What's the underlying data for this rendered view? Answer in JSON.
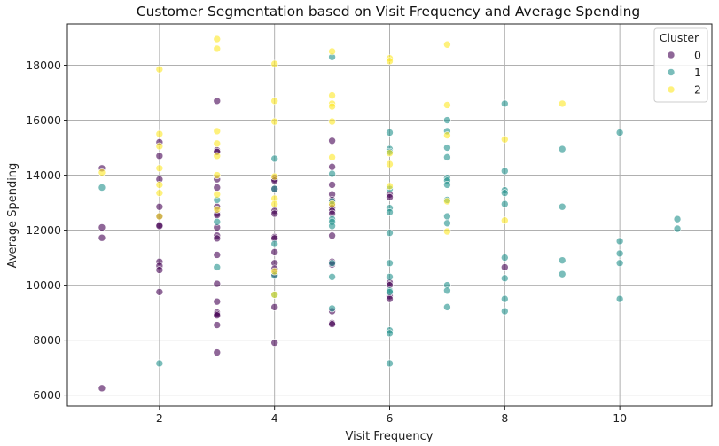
{
  "chart_data": {
    "type": "scatter",
    "title": "Customer Segmentation based on Visit Frequency and Average Spending",
    "xlabel": "Visit Frequency",
    "ylabel": "Average Spending",
    "xlim": [
      0.4,
      11.6
    ],
    "ylim": [
      5600,
      19500
    ],
    "xticks": [
      2,
      4,
      6,
      8,
      10
    ],
    "yticks": [
      6000,
      8000,
      10000,
      12000,
      14000,
      16000,
      18000
    ],
    "grid": true,
    "legend": {
      "title": "Cluster",
      "position": "top-right"
    },
    "series": [
      {
        "name": "0",
        "color": "#440154",
        "points": [
          [
            1,
            14250
          ],
          [
            1,
            12100
          ],
          [
            1,
            11720
          ],
          [
            1,
            6250
          ],
          [
            2,
            15200
          ],
          [
            2,
            14700
          ],
          [
            2,
            13850
          ],
          [
            2,
            12850
          ],
          [
            2,
            12500
          ],
          [
            2,
            12180
          ],
          [
            2,
            12150
          ],
          [
            2,
            10850
          ],
          [
            2,
            10700
          ],
          [
            2,
            10550
          ],
          [
            2,
            9750
          ],
          [
            3,
            16700
          ],
          [
            3,
            14900
          ],
          [
            3,
            14850
          ],
          [
            3,
            13850
          ],
          [
            3,
            13550
          ],
          [
            3,
            12850
          ],
          [
            3,
            12600
          ],
          [
            3,
            12550
          ],
          [
            3,
            12100
          ],
          [
            3,
            11800
          ],
          [
            3,
            11700
          ],
          [
            3,
            11100
          ],
          [
            3,
            10050
          ],
          [
            3,
            9400
          ],
          [
            3,
            9000
          ],
          [
            3,
            8950
          ],
          [
            3,
            8900
          ],
          [
            3,
            8550
          ],
          [
            3,
            7550
          ],
          [
            4,
            13900
          ],
          [
            4,
            13850
          ],
          [
            4,
            13800
          ],
          [
            4,
            13500
          ],
          [
            4,
            12700
          ],
          [
            4,
            12600
          ],
          [
            4,
            11750
          ],
          [
            4,
            11700
          ],
          [
            4,
            11200
          ],
          [
            4,
            10800
          ],
          [
            4,
            10600
          ],
          [
            4,
            10400
          ],
          [
            4,
            9200
          ],
          [
            4,
            7900
          ],
          [
            5,
            15250
          ],
          [
            5,
            14300
          ],
          [
            5,
            13650
          ],
          [
            5,
            13300
          ],
          [
            5,
            13100
          ],
          [
            5,
            12900
          ],
          [
            5,
            12800
          ],
          [
            5,
            12700
          ],
          [
            5,
            12600
          ],
          [
            5,
            11800
          ],
          [
            5,
            10850
          ],
          [
            5,
            10750
          ],
          [
            5,
            9050
          ],
          [
            5,
            8620
          ],
          [
            5,
            8580
          ],
          [
            6,
            13300
          ],
          [
            6,
            13200
          ],
          [
            6,
            10100
          ],
          [
            6,
            10000
          ],
          [
            6,
            9600
          ],
          [
            6,
            9500
          ],
          [
            8,
            10650
          ]
        ]
      },
      {
        "name": "1",
        "color": "#21918c",
        "points": [
          [
            1,
            13550
          ],
          [
            2,
            7150
          ],
          [
            3,
            13100
          ],
          [
            3,
            12300
          ],
          [
            3,
            10650
          ],
          [
            4,
            14600
          ],
          [
            4,
            13500
          ],
          [
            4,
            11500
          ],
          [
            4,
            10350
          ],
          [
            4,
            9650
          ],
          [
            5,
            18300
          ],
          [
            5,
            14050
          ],
          [
            5,
            13050
          ],
          [
            5,
            12400
          ],
          [
            5,
            12300
          ],
          [
            5,
            12150
          ],
          [
            5,
            10800
          ],
          [
            5,
            10300
          ],
          [
            5,
            9150
          ],
          [
            6,
            15550
          ],
          [
            6,
            14950
          ],
          [
            6,
            14850
          ],
          [
            6,
            13500
          ],
          [
            6,
            12800
          ],
          [
            6,
            12650
          ],
          [
            6,
            11900
          ],
          [
            6,
            10800
          ],
          [
            6,
            10300
          ],
          [
            6,
            9800
          ],
          [
            6,
            9750
          ],
          [
            6,
            8350
          ],
          [
            6,
            8250
          ],
          [
            6,
            7150
          ],
          [
            7,
            16000
          ],
          [
            7,
            15600
          ],
          [
            7,
            15000
          ],
          [
            7,
            14650
          ],
          [
            7,
            13900
          ],
          [
            7,
            13800
          ],
          [
            7,
            13650
          ],
          [
            7,
            13100
          ],
          [
            7,
            12500
          ],
          [
            7,
            12250
          ],
          [
            7,
            10000
          ],
          [
            7,
            9800
          ],
          [
            7,
            9200
          ],
          [
            8,
            16600
          ],
          [
            8,
            14150
          ],
          [
            8,
            13450
          ],
          [
            8,
            13350
          ],
          [
            8,
            12950
          ],
          [
            8,
            11000
          ],
          [
            8,
            10250
          ],
          [
            8,
            9500
          ],
          [
            8,
            9050
          ],
          [
            9,
            14950
          ],
          [
            9,
            12850
          ],
          [
            9,
            10900
          ],
          [
            9,
            10400
          ],
          [
            10,
            15550
          ],
          [
            10,
            11600
          ],
          [
            10,
            11150
          ],
          [
            10,
            10800
          ],
          [
            10,
            9500
          ],
          [
            11,
            12400
          ],
          [
            11,
            12050
          ]
        ]
      },
      {
        "name": "2",
        "color": "#fde725",
        "points": [
          [
            1,
            14100
          ],
          [
            2,
            17850
          ],
          [
            2,
            15500
          ],
          [
            2,
            15050
          ],
          [
            2,
            14250
          ],
          [
            2,
            13650
          ],
          [
            2,
            13350
          ],
          [
            2,
            12500
          ],
          [
            3,
            18950
          ],
          [
            3,
            18600
          ],
          [
            3,
            15600
          ],
          [
            3,
            15150
          ],
          [
            3,
            14700
          ],
          [
            3,
            14000
          ],
          [
            3,
            13300
          ],
          [
            3,
            12750
          ],
          [
            4,
            18050
          ],
          [
            4,
            16700
          ],
          [
            4,
            15950
          ],
          [
            4,
            13950
          ],
          [
            4,
            13150
          ],
          [
            4,
            12950
          ],
          [
            4,
            10500
          ],
          [
            4,
            9650
          ],
          [
            5,
            18500
          ],
          [
            5,
            16900
          ],
          [
            5,
            16600
          ],
          [
            5,
            16500
          ],
          [
            5,
            15950
          ],
          [
            5,
            14650
          ],
          [
            5,
            12950
          ],
          [
            6,
            18250
          ],
          [
            6,
            18150
          ],
          [
            6,
            14800
          ],
          [
            6,
            14400
          ],
          [
            6,
            13600
          ],
          [
            7,
            18750
          ],
          [
            7,
            16550
          ],
          [
            7,
            15450
          ],
          [
            7,
            13050
          ],
          [
            7,
            11950
          ],
          [
            8,
            15300
          ],
          [
            8,
            12350
          ],
          [
            9,
            16600
          ]
        ]
      }
    ]
  }
}
